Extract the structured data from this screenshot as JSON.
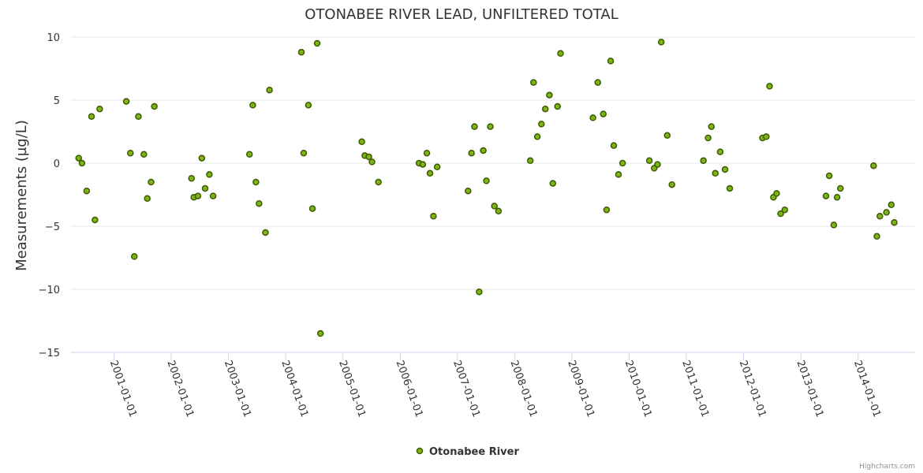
{
  "chart_data": {
    "type": "scatter",
    "title": "OTONABEE RIVER LEAD, UNFILTERED TOTAL",
    "xlabel": "",
    "ylabel": "Measurements (µg/L)",
    "ylim": [
      -15,
      10
    ],
    "yticks": [
      10,
      5,
      0,
      -5,
      -10,
      -15
    ],
    "xlim": [
      "2000-04-01",
      "2014-12-31"
    ],
    "xticks": [
      "2001-01-01",
      "2002-01-01",
      "2003-01-01",
      "2004-01-01",
      "2005-01-01",
      "2006-01-01",
      "2007-01-01",
      "2008-01-01",
      "2009-01-01",
      "2010-01-01",
      "2011-01-01",
      "2012-01-01",
      "2013-01-01",
      "2014-01-01"
    ],
    "legend": "bottom-center",
    "credits": "Highcharts.com",
    "colors": {
      "marker_fill": "#7cb518",
      "marker_stroke": "#3e5a00",
      "grid": "#e6e6e6",
      "axis": "#ccd6eb"
    },
    "series": [
      {
        "name": "Otonabee River",
        "points": [
          [
            "2000-05-20",
            0.4
          ],
          [
            "2000-06-10",
            0.0
          ],
          [
            "2000-07-10",
            -2.2
          ],
          [
            "2000-08-10",
            3.7
          ],
          [
            "2000-09-01",
            -4.5
          ],
          [
            "2000-10-01",
            4.3
          ],
          [
            "2001-03-20",
            4.9
          ],
          [
            "2001-04-15",
            0.8
          ],
          [
            "2001-05-10",
            -7.4
          ],
          [
            "2001-06-05",
            3.7
          ],
          [
            "2001-07-10",
            0.7
          ],
          [
            "2001-08-01",
            -2.8
          ],
          [
            "2001-08-25",
            -1.5
          ],
          [
            "2001-09-15",
            4.5
          ],
          [
            "2002-05-10",
            -1.2
          ],
          [
            "2002-05-25",
            -2.7
          ],
          [
            "2002-06-20",
            -2.6
          ],
          [
            "2002-07-15",
            0.4
          ],
          [
            "2002-08-05",
            -2.0
          ],
          [
            "2002-09-01",
            -0.9
          ],
          [
            "2002-09-25",
            -2.6
          ],
          [
            "2003-05-15",
            0.7
          ],
          [
            "2003-06-05",
            4.6
          ],
          [
            "2003-06-25",
            -1.5
          ],
          [
            "2003-07-15",
            -3.2
          ],
          [
            "2003-08-25",
            -5.5
          ],
          [
            "2003-09-20",
            5.8
          ],
          [
            "2004-04-10",
            8.8
          ],
          [
            "2004-04-25",
            0.8
          ],
          [
            "2004-05-25",
            4.6
          ],
          [
            "2004-06-20",
            -3.6
          ],
          [
            "2004-07-20",
            9.5
          ],
          [
            "2004-08-10",
            -13.5
          ],
          [
            "2005-05-01",
            1.7
          ],
          [
            "2005-05-20",
            0.6
          ],
          [
            "2005-06-15",
            0.5
          ],
          [
            "2005-07-05",
            0.1
          ],
          [
            "2005-08-15",
            -1.5
          ],
          [
            "2006-05-01",
            0.0
          ],
          [
            "2006-05-25",
            -0.1
          ],
          [
            "2006-06-20",
            0.8
          ],
          [
            "2006-07-10",
            -0.8
          ],
          [
            "2006-08-01",
            -4.2
          ],
          [
            "2006-08-25",
            -0.3
          ],
          [
            "2007-03-10",
            -2.2
          ],
          [
            "2007-04-01",
            0.8
          ],
          [
            "2007-04-20",
            2.9
          ],
          [
            "2007-05-20",
            -10.2
          ],
          [
            "2007-06-15",
            1.0
          ],
          [
            "2007-07-05",
            -1.4
          ],
          [
            "2007-07-30",
            2.9
          ],
          [
            "2007-08-25",
            -3.4
          ],
          [
            "2007-09-20",
            -3.8
          ],
          [
            "2008-04-10",
            0.2
          ],
          [
            "2008-05-01",
            6.4
          ],
          [
            "2008-05-25",
            2.1
          ],
          [
            "2008-06-20",
            3.1
          ],
          [
            "2008-07-15",
            4.3
          ],
          [
            "2008-08-10",
            5.4
          ],
          [
            "2008-09-01",
            -1.6
          ],
          [
            "2008-10-01",
            4.5
          ],
          [
            "2008-10-20",
            8.7
          ],
          [
            "2009-05-15",
            3.6
          ],
          [
            "2009-06-15",
            6.4
          ],
          [
            "2009-07-20",
            3.9
          ],
          [
            "2009-08-10",
            -3.7
          ],
          [
            "2009-09-05",
            8.1
          ],
          [
            "2009-09-25",
            1.4
          ],
          [
            "2009-10-25",
            -0.9
          ],
          [
            "2009-11-20",
            0.0
          ],
          [
            "2010-05-10",
            0.2
          ],
          [
            "2010-06-10",
            -0.4
          ],
          [
            "2010-07-01",
            -0.1
          ],
          [
            "2010-07-25",
            9.6
          ],
          [
            "2010-09-01",
            2.2
          ],
          [
            "2010-10-01",
            -1.7
          ],
          [
            "2011-04-20",
            0.2
          ],
          [
            "2011-05-20",
            2.0
          ],
          [
            "2011-06-10",
            2.9
          ],
          [
            "2011-07-05",
            -0.8
          ],
          [
            "2011-08-05",
            0.9
          ],
          [
            "2011-09-05",
            -0.5
          ],
          [
            "2011-10-05",
            -2.0
          ],
          [
            "2012-05-01",
            2.0
          ],
          [
            "2012-05-25",
            2.1
          ],
          [
            "2012-06-15",
            6.1
          ],
          [
            "2012-07-10",
            -2.7
          ],
          [
            "2012-07-30",
            -2.4
          ],
          [
            "2012-08-25",
            -4.0
          ],
          [
            "2012-09-20",
            -3.7
          ],
          [
            "2013-06-10",
            -2.6
          ],
          [
            "2013-07-01",
            -1.0
          ],
          [
            "2013-07-30",
            -4.9
          ],
          [
            "2013-08-20",
            -2.7
          ],
          [
            "2013-09-10",
            -2.0
          ],
          [
            "2014-04-10",
            -0.2
          ],
          [
            "2014-05-01",
            -5.8
          ],
          [
            "2014-05-20",
            -4.2
          ],
          [
            "2014-07-01",
            -3.9
          ],
          [
            "2014-08-01",
            -3.3
          ],
          [
            "2014-08-20",
            -4.7
          ]
        ]
      }
    ]
  }
}
